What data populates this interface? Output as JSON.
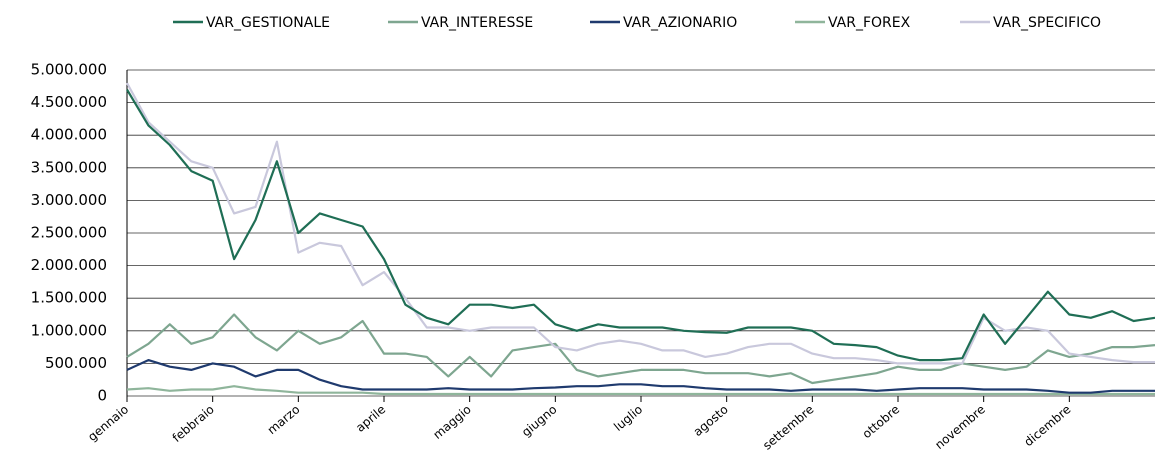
{
  "chart_data": {
    "type": "line",
    "categories": [
      "gennaio",
      null,
      null,
      null,
      "febbraio",
      null,
      null,
      null,
      "marzo",
      null,
      null,
      null,
      "aprile",
      null,
      null,
      null,
      "maggio",
      null,
      null,
      null,
      "giugno",
      null,
      null,
      null,
      "luglio",
      null,
      null,
      null,
      "agosto",
      null,
      null,
      null,
      "settembre",
      null,
      null,
      null,
      "ottobre",
      null,
      null,
      null,
      "novembre",
      null,
      null,
      null,
      "dicembre",
      null,
      null,
      null,
      null
    ],
    "series": [
      {
        "name": "VAR_GESTIONALE",
        "color": "#1f6e55",
        "values": [
          4700000,
          4150000,
          3850000,
          3450000,
          3300000,
          2100000,
          2700000,
          3600000,
          2500000,
          2800000,
          2700000,
          2600000,
          2100000,
          1400000,
          1200000,
          1100000,
          1400000,
          1400000,
          1350000,
          1400000,
          1100000,
          1000000,
          1100000,
          1050000,
          1050000,
          1050000,
          1000000,
          980000,
          970000,
          1050000,
          1050000,
          1050000,
          1000000,
          800000,
          780000,
          750000,
          620000,
          550000,
          550000,
          580000,
          1250000,
          800000,
          1200000,
          1600000,
          1250000,
          1200000,
          1300000,
          1150000,
          1200000
        ]
      },
      {
        "name": "VAR_INTERESSE",
        "color": "#7ea690",
        "values": [
          600000,
          800000,
          1100000,
          800000,
          900000,
          1250000,
          900000,
          700000,
          1000000,
          800000,
          900000,
          1150000,
          650000,
          650000,
          600000,
          300000,
          600000,
          300000,
          700000,
          750000,
          800000,
          400000,
          300000,
          350000,
          400000,
          400000,
          400000,
          350000,
          350000,
          350000,
          300000,
          350000,
          200000,
          250000,
          300000,
          350000,
          450000,
          400000,
          400000,
          500000,
          450000,
          400000,
          450000,
          700000,
          600000,
          650000,
          750000,
          750000,
          780000
        ]
      },
      {
        "name": "VAR_AZIONARIO",
        "color": "#1f3a6e",
        "values": [
          400000,
          550000,
          450000,
          400000,
          500000,
          450000,
          300000,
          400000,
          400000,
          250000,
          150000,
          100000,
          100000,
          100000,
          100000,
          120000,
          100000,
          100000,
          100000,
          120000,
          130000,
          150000,
          150000,
          180000,
          180000,
          150000,
          150000,
          120000,
          100000,
          100000,
          100000,
          80000,
          100000,
          100000,
          100000,
          80000,
          100000,
          120000,
          120000,
          120000,
          100000,
          100000,
          100000,
          80000,
          50000,
          50000,
          80000,
          80000,
          80000
        ]
      },
      {
        "name": "VAR_FOREX",
        "color": "#8fb59b",
        "values": [
          100000,
          120000,
          80000,
          100000,
          100000,
          150000,
          100000,
          80000,
          50000,
          50000,
          50000,
          50000,
          30000,
          30000,
          30000,
          30000,
          30000,
          30000,
          30000,
          30000,
          30000,
          30000,
          30000,
          30000,
          30000,
          30000,
          30000,
          30000,
          30000,
          30000,
          30000,
          30000,
          30000,
          30000,
          30000,
          30000,
          30000,
          30000,
          30000,
          30000,
          30000,
          30000,
          30000,
          30000,
          30000,
          30000,
          30000,
          30000,
          30000
        ]
      },
      {
        "name": "VAR_SPECIFICO",
        "color": "#c9c8dc",
        "values": [
          4800000,
          4200000,
          3900000,
          3600000,
          3500000,
          2800000,
          2900000,
          3900000,
          2200000,
          2350000,
          2300000,
          1700000,
          1900000,
          1500000,
          1050000,
          1050000,
          1000000,
          1050000,
          1050000,
          1050000,
          750000,
          700000,
          800000,
          850000,
          800000,
          700000,
          700000,
          600000,
          650000,
          750000,
          800000,
          800000,
          650000,
          580000,
          580000,
          550000,
          500000,
          500000,
          500000,
          500000,
          1200000,
          1000000,
          1050000,
          1000000,
          650000,
          600000,
          550000,
          520000,
          520000
        ]
      }
    ],
    "ylim": [
      0,
      5000000
    ],
    "yticks": [
      0,
      {
        "value": 500000,
        "label": "500.000"
      },
      {
        "value": 1000000,
        "label": "1.000.000"
      },
      {
        "value": 1500000,
        "label": "1.500.000"
      },
      {
        "value": 2000000,
        "label": "2.000.000"
      },
      {
        "value": 2500000,
        "label": "2.500.000"
      },
      {
        "value": 3000000,
        "label": "3.000.000"
      },
      {
        "value": 3500000,
        "label": "3.500.000"
      },
      {
        "value": 4000000,
        "label": "4.000.000"
      },
      {
        "value": 4500000,
        "label": "4.500.000"
      },
      {
        "value": 5000000,
        "label": "5.000.000"
      }
    ],
    "grid": true,
    "legend": "top"
  }
}
